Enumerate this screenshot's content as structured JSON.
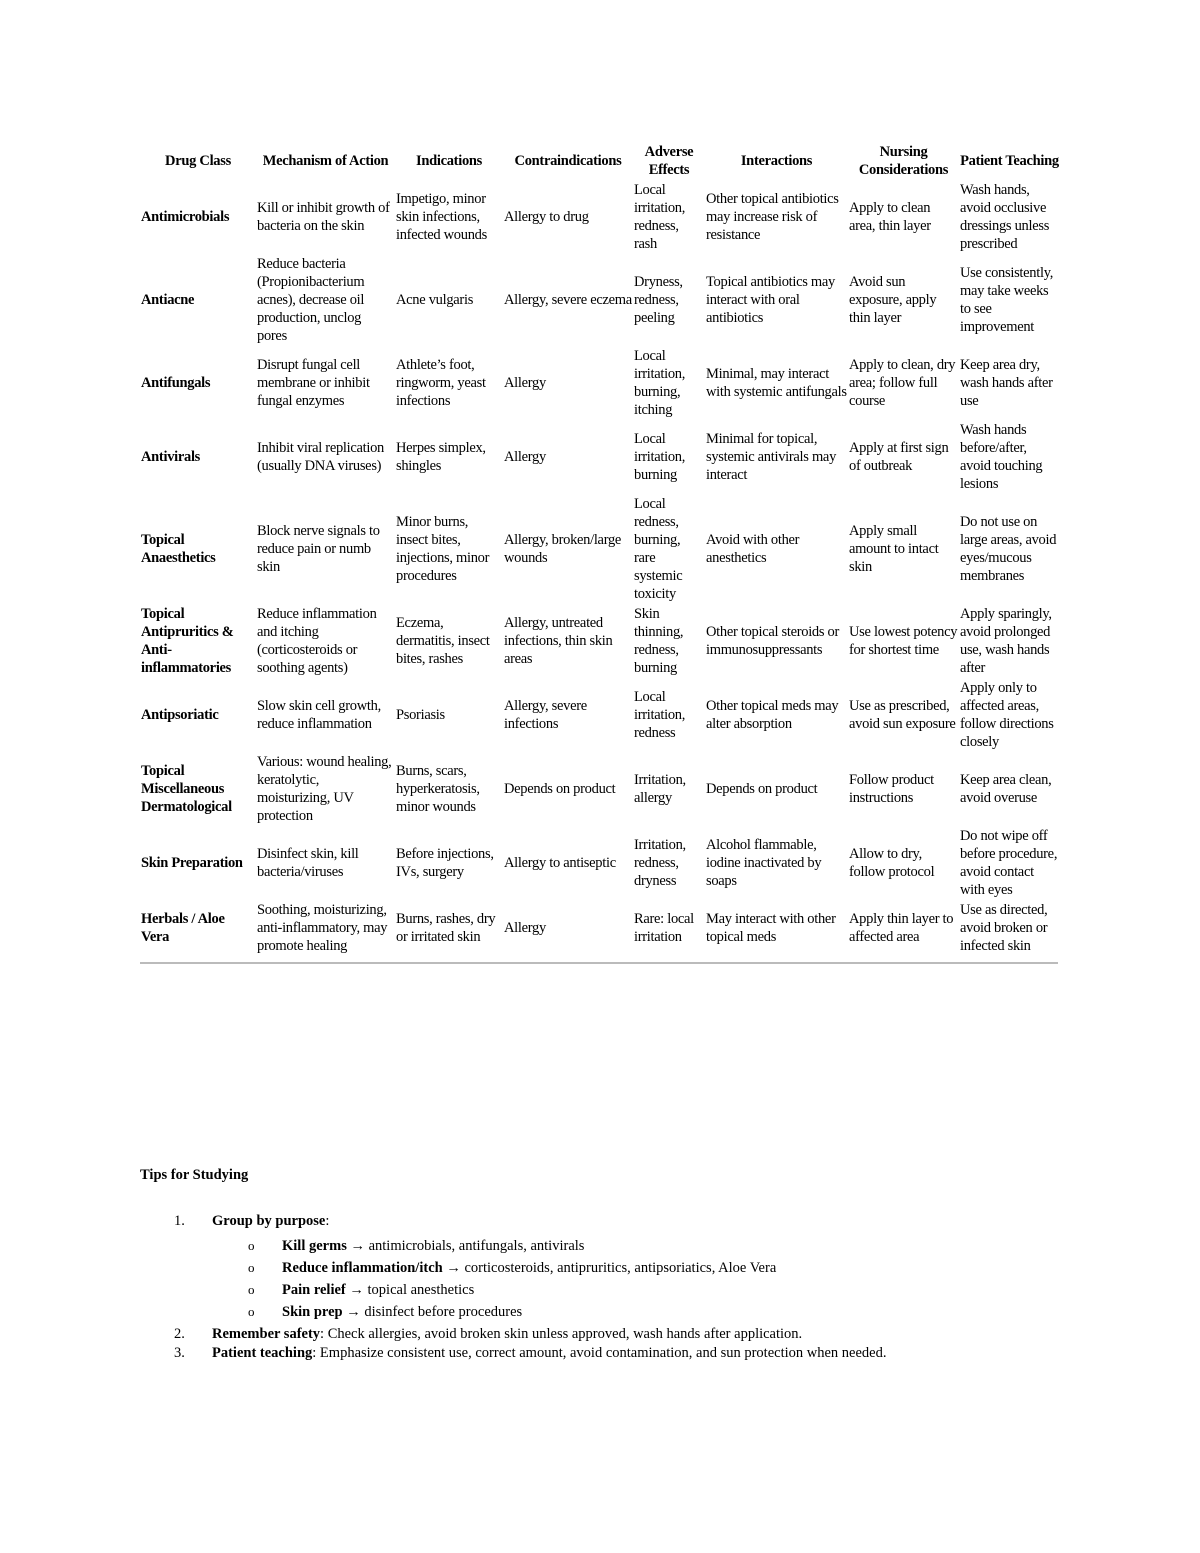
{
  "table": {
    "headers": [
      "Drug Class",
      "Mechanism of Action",
      "Indications",
      "Contraindications",
      "Adverse Effects",
      "Interactions",
      "Nursing Considerations",
      "Patient Teaching"
    ],
    "rows": [
      [
        "Antimicrobials",
        "Kill or inhibit growth of bacteria on the skin",
        "Impetigo, minor skin infections, infected wounds",
        "Allergy to drug",
        "Local irritation, redness, rash",
        "Other topical antibiotics may increase risk of resistance",
        "Apply to clean area, thin layer",
        "Wash hands, avoid occlusive dressings unless prescribed"
      ],
      [
        "Antiacne",
        "Reduce bacteria (Propionibacterium acnes), decrease oil production, unclog pores",
        "Acne vulgaris",
        "Allergy, severe eczema",
        "Dryness, redness, peeling",
        "Topical antibiotics may interact with oral antibiotics",
        "Avoid sun exposure, apply thin layer",
        "Use consistently, may take weeks to see improvement"
      ],
      [
        "Antifungals",
        "Disrupt fungal cell membrane or inhibit fungal enzymes",
        "Athlete’s foot, ringworm, yeast infections",
        "Allergy",
        "Local irritation, burning, itching",
        "Minimal, may interact with systemic antifungals",
        "Apply to clean, dry area; follow full course",
        "Keep area dry, wash hands after use"
      ],
      [
        "Antivirals",
        "Inhibit viral replication (usually DNA viruses)",
        "Herpes simplex, shingles",
        "Allergy",
        "Local irritation, burning",
        "Minimal for topical, systemic antivirals may interact",
        "Apply at first sign of outbreak",
        "Wash hands before/after, avoid touching lesions"
      ],
      [
        "Topical Anaesthetics",
        "Block nerve signals to reduce pain or numb skin",
        "Minor burns, insect bites, injections, minor procedures",
        "Allergy, broken/large wounds",
        "Local redness, burning, rare systemic toxicity",
        "Avoid with other anesthetics",
        "Apply small amount to intact skin",
        "Do not use on large areas, avoid eyes/mucous membranes"
      ],
      [
        "Topical Antipruritics & Anti-inflammatories",
        "Reduce inflammation and itching (corticosteroids or soothing agents)",
        "Eczema, dermatitis, insect bites, rashes",
        "Allergy, untreated infections, thin skin areas",
        "Skin thinning, redness, burning",
        "Other topical steroids or immunosuppressants",
        "Use lowest potency for shortest time",
        "Apply sparingly, avoid prolonged use, wash hands after"
      ],
      [
        "Antipsoriatic",
        "Slow skin cell growth, reduce inflammation",
        "Psoriasis",
        "Allergy, severe infections",
        "Local irritation, redness",
        "Other topical meds may alter absorption",
        "Use as prescribed, avoid sun exposure",
        "Apply only to affected areas, follow directions closely"
      ],
      [
        "Topical Miscellaneous Dermatological",
        "Various: wound healing, keratolytic, moisturizing, UV protection",
        "Burns, scars, hyperkeratosis, minor wounds",
        "Depends on product",
        "Irritation, allergy",
        "Depends on product",
        "Follow product instructions",
        "Keep area clean, avoid overuse"
      ],
      [
        "Skin Preparation",
        "Disinfect skin, kill bacteria/viruses",
        "Before injections, IVs, surgery",
        "Allergy to antiseptic",
        "Irritation, redness, dryness",
        "Alcohol flammable, iodine inactivated by soaps",
        "Allow to dry, follow protocol",
        "Do not wipe off before procedure, avoid contact with eyes"
      ],
      [
        "Herbals / Aloe Vera",
        "Soothing, moisturizing, anti-inflammatory, may promote healing",
        "Burns, rashes, dry or irritated skin",
        "Allergy",
        "Rare: local irritation",
        "May interact with other topical meds",
        "Apply thin layer to affected area",
        "Use as directed, avoid broken or infected skin"
      ]
    ]
  },
  "tips": {
    "title": "Tips for Studying",
    "items": [
      {
        "num": "1.",
        "bold": "Group by purpose",
        "text": ":",
        "sub": [
          {
            "bullet": "o",
            "bold": "Kill germs",
            "text": " → antimicrobials, antifungals, antivirals"
          },
          {
            "bullet": "o",
            "bold": "Reduce inflammation/itch",
            "text": " → corticosteroids, antipruritics, antipsoriatics, Aloe Vera"
          },
          {
            "bullet": "o",
            "bold": "Pain relief",
            "text": " → topical anesthetics"
          },
          {
            "bullet": "o",
            "bold": "Skin prep",
            "text": " → disinfect before procedures"
          }
        ]
      },
      {
        "num": "2.",
        "bold": "Remember safety",
        "text": ": Check allergies, avoid broken skin unless approved, wash hands after application."
      },
      {
        "num": "3.",
        "bold": "Patient teaching",
        "text": ": Emphasize consistent use, correct amount, avoid contamination, and sun protection when needed."
      }
    ]
  }
}
